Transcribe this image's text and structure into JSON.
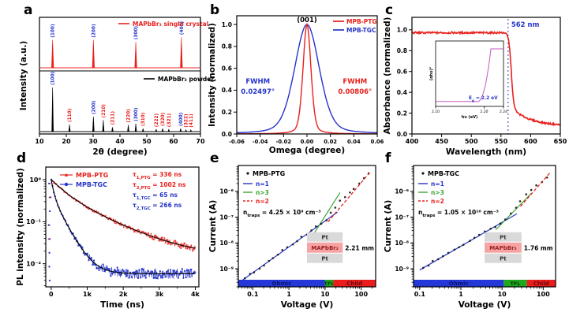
{
  "figure": {
    "background": "#ffffff"
  },
  "colors": {
    "red": "#e8211d",
    "blue": "#2735c9",
    "green": "#3fa535",
    "black": "#000000",
    "bar_blue": "#2438d8",
    "bar_green": "#1fa81f",
    "bar_red": "#ea1c1c",
    "gray": "#d9d9d9",
    "pink": "#f6a3a3",
    "magenta": "#c45ac4",
    "ohmic_text": "#0b1470",
    "tfl_text": "#0a3a0a",
    "child_text": "#6e0a0a",
    "device_text": "#9a2020"
  },
  "chart_data": {
    "a": {
      "panel_label": "a",
      "type": "line",
      "xlabel": "2θ (degree)",
      "ylabel": "Intensity (a.u.)",
      "xlim": [
        10,
        70
      ],
      "xticks": [
        10,
        20,
        30,
        40,
        50,
        60,
        70
      ],
      "series": [
        {
          "name": "MAPbBr₃ single crystal",
          "color": "red",
          "peaks": [
            [
              14.9,
              0.88,
              "(100)",
              "blue"
            ],
            [
              30.1,
              0.88,
              "(200)",
              "blue"
            ],
            [
              45.9,
              0.82,
              "(300)",
              "blue"
            ],
            [
              62.9,
              0.97,
              "(400)",
              "blue"
            ]
          ]
        },
        {
          "name": "MAPbBr₃ powder",
          "color": "black",
          "peaks": [
            [
              14.9,
              1.0,
              "(100)",
              "blue"
            ],
            [
              21.2,
              0.16,
              "(110)",
              "red"
            ],
            [
              30.1,
              0.34,
              "(200)",
              "blue"
            ],
            [
              33.8,
              0.26,
              "(210)",
              "red"
            ],
            [
              37.2,
              0.1,
              "(211)",
              "red"
            ],
            [
              43.1,
              0.15,
              "(220)",
              "red"
            ],
            [
              45.9,
              0.18,
              "(300)",
              "blue"
            ],
            [
              48.6,
              0.07,
              "(310)",
              "red"
            ],
            [
              53.5,
              0.05,
              "(222)",
              "red"
            ],
            [
              55.9,
              0.07,
              "(320)",
              "red"
            ],
            [
              58.2,
              0.05,
              "(321)",
              "red"
            ],
            [
              62.6,
              0.07,
              "(400)",
              "blue"
            ],
            [
              64.6,
              0.04,
              "(322)",
              "red"
            ],
            [
              66.4,
              0.04,
              "(411)",
              "red"
            ]
          ]
        }
      ]
    },
    "b": {
      "panel_label": "b",
      "type": "line",
      "xlabel": "Omega (degree)",
      "ylabel": "Intensity (normalized)",
      "xlim": [
        -0.06,
        0.06
      ],
      "ylim": [
        0,
        1.08
      ],
      "xticks": [
        [
          -0.06,
          "-0.06"
        ],
        [
          -0.04,
          "-0.04"
        ],
        [
          -0.02,
          "-0.02"
        ],
        [
          0,
          "0.00"
        ],
        [
          0.02,
          "0.02"
        ],
        [
          0.04,
          "0.04"
        ],
        [
          0.06,
          "0.06"
        ]
      ],
      "yticks": [
        [
          0,
          "0.0"
        ],
        [
          0.2,
          "0.2"
        ],
        [
          0.4,
          "0.4"
        ],
        [
          0.6,
          "0.6"
        ],
        [
          0.8,
          "0.8"
        ],
        [
          1.0,
          "1.0"
        ]
      ],
      "peak_label": "(001)",
      "legend": [
        {
          "label": "MPB-PTG",
          "color": "red"
        },
        {
          "label": "MPB-TGC",
          "color": "blue"
        }
      ],
      "series": [
        {
          "name": "MPB-TGC",
          "color": "blue",
          "fwhm_deg": 0.02497
        },
        {
          "name": "MPB-PTG",
          "color": "red",
          "fwhm_deg": 0.00806
        }
      ],
      "annotations": [
        {
          "line1": "FWHM",
          "line2": "0.02497°",
          "color": "blue",
          "x": -0.042
        },
        {
          "line1": "FWHM",
          "line2": "0.00806°",
          "color": "red",
          "x": 0.041
        }
      ]
    },
    "c": {
      "panel_label": "c",
      "type": "line",
      "xlabel": "Wavelength (nm)",
      "ylabel": "Absorbance (normalized)",
      "xlim": [
        400,
        650
      ],
      "ylim": [
        0,
        1.12
      ],
      "xticks": [
        400,
        450,
        500,
        550,
        600,
        650
      ],
      "yticks": [
        [
          0,
          "0.0"
        ],
        [
          0.2,
          "0.2"
        ],
        [
          0.4,
          "0.4"
        ],
        [
          0.6,
          "0.6"
        ],
        [
          0.8,
          "0.8"
        ],
        [
          1.0,
          "1.0"
        ]
      ],
      "series": [
        {
          "name": "absorbance",
          "color": "red",
          "plateau": 0.972,
          "edge_nm": 562,
          "tail": 0.075
        }
      ],
      "vline": {
        "x": 562,
        "label": "562 nm",
        "color": "blue"
      },
      "inset": {
        "xlabel": "hν (eV)",
        "ylabel": "(αhν)²",
        "xlim": [
          2.1,
          2.24
        ],
        "xticks": [
          [
            2.1,
            "2.10"
          ],
          [
            2.2,
            "2.20"
          ],
          [
            2.24,
            "2.24"
          ]
        ],
        "eg_rich": [
          [
            "E",
            0
          ],
          [
            "g",
            -1
          ],
          [
            " = 2.2 eV",
            0
          ]
        ],
        "color": "magenta",
        "onset_ev": 2.2
      }
    },
    "d": {
      "panel_label": "d",
      "type": "line",
      "xlabel": "Time (ns)",
      "ylabel": "PL intensity (normalized)",
      "xlim": [
        -150,
        4100
      ],
      "xticks": [
        [
          0,
          "0"
        ],
        [
          1000,
          "1k"
        ],
        [
          2000,
          "2k"
        ],
        [
          3000,
          "3k"
        ],
        [
          4000,
          "4k"
        ]
      ],
      "ylog_range": [
        0.3,
        -2.55
      ],
      "yticks": [
        [
          1,
          "10⁰"
        ],
        [
          0.1,
          "10⁻¹"
        ],
        [
          0.01,
          "10⁻²"
        ]
      ],
      "legend": [
        {
          "label": "MPB-PTG",
          "color": "red",
          "marker": "triangle"
        },
        {
          "label": "MPB-TGC",
          "color": "blue",
          "marker": "circle"
        }
      ],
      "series": [
        {
          "name": "MPB-PTG",
          "color": "red",
          "tau1_ns": 336,
          "tau2_ns": 1002,
          "a1": 0.5,
          "a2": 0.5,
          "floor": 0.014,
          "seed": 7
        },
        {
          "name": "MPB-TGC",
          "color": "blue",
          "tau1_ns": 65,
          "tau2_ns": 266,
          "a1": 0.58,
          "a2": 0.42,
          "floor": 0.0058,
          "seed": 31
        }
      ],
      "annotations": [
        {
          "rich": [
            [
              "τ",
              0
            ],
            [
              "1,PTG",
              -1
            ],
            [
              " = 336 ns",
              0
            ]
          ],
          "color": "red"
        },
        {
          "rich": [
            [
              "τ",
              0
            ],
            [
              "2,PTG",
              -1
            ],
            [
              " = 1002 ns",
              0
            ]
          ],
          "color": "red"
        },
        {
          "rich": [
            [
              "τ",
              0
            ],
            [
              "1,TGC",
              -1
            ],
            [
              " = 65 ns",
              0
            ]
          ],
          "color": "blue"
        },
        {
          "rich": [
            [
              "τ",
              0
            ],
            [
              "2,TGC",
              -1
            ],
            [
              " = 266 ns",
              0
            ]
          ],
          "color": "blue"
        }
      ]
    },
    "e": {
      "panel_label": "e",
      "type": "scatter",
      "sample_label": "MPB-PTG",
      "xlabel": "Voltage (V)",
      "ylabel": "Current (A)",
      "xlog_range": [
        -1.4,
        2.4
      ],
      "ylog_range": [
        -5.0,
        -9.7
      ],
      "xticks": [
        [
          0.1,
          "0.1"
        ],
        [
          1,
          "1"
        ],
        [
          10,
          "10"
        ],
        [
          100,
          "100"
        ]
      ],
      "yticks": [
        [
          1e-06,
          "10⁻⁶"
        ],
        [
          1e-07,
          "10⁻⁷"
        ],
        [
          1e-08,
          "10⁻⁸"
        ],
        [
          1e-09,
          "10⁻⁹"
        ]
      ],
      "data_knots": [
        [
          0.06,
          4.2e-10
        ],
        [
          9,
          6.3e-08
        ],
        [
          20,
          2.8e-07
        ],
        [
          160,
          4.5e-06
        ]
      ],
      "n_points": 27,
      "seed": 11,
      "fit_lines": [
        {
          "label": "n=1",
          "color": "blue",
          "x1": 0.05,
          "y1": 3.5e-10,
          "x2": 22,
          "y2": 1.55e-07,
          "dash": false
        },
        {
          "label": "n>3",
          "color": "green",
          "x1": 4.2,
          "y1": 1.6e-08,
          "x2": 26,
          "y2": 9e-07,
          "dash": false
        },
        {
          "label": "n=2",
          "color": "red",
          "x1": 12,
          "y1": 6.5e-08,
          "x2": 185,
          "y2": 6e-06,
          "dash": true
        }
      ],
      "ntraps_rich": [
        [
          "n",
          0
        ],
        [
          "traps",
          -1
        ],
        [
          " = 4.25 × 10⁹ cm⁻³",
          0
        ]
      ],
      "device": {
        "layers": [
          "Pt",
          "MAPbBr₃",
          "Pt"
        ],
        "thickness": "2.21 mm"
      },
      "regions": [
        {
          "label": "Ohmic",
          "color": "bar_blue",
          "text_color": "ohmic_text",
          "to_v": 10
        },
        {
          "label": "TFL",
          "color": "bar_green",
          "text_color": "tfl_text",
          "to_v": 17
        },
        {
          "label": "Child",
          "color": "bar_red",
          "text_color": "child_text",
          "to_v": null
        }
      ]
    },
    "f": {
      "panel_label": "f",
      "type": "scatter",
      "sample_label": "MPB-TGC",
      "xlabel": "Voltage (V)",
      "ylabel": "Current (A)",
      "xlog_range": [
        -1.15,
        2.3
      ],
      "ylog_range": [
        -5.0,
        -9.7
      ],
      "xticks": [
        [
          0.1,
          "0.1"
        ],
        [
          1,
          "1"
        ],
        [
          10,
          "10"
        ],
        [
          100,
          "100"
        ]
      ],
      "yticks": [
        [
          1e-06,
          "10⁻⁶"
        ],
        [
          1e-07,
          "10⁻⁷"
        ],
        [
          1e-08,
          "10⁻⁸"
        ],
        [
          1e-09,
          "10⁻⁹"
        ]
      ],
      "data_knots": [
        [
          0.12,
          1.05e-09
        ],
        [
          10,
          6.5e-08
        ],
        [
          40,
          7.9e-07
        ],
        [
          120,
          3.2e-06
        ]
      ],
      "n_points": 25,
      "seed": 23,
      "fit_lines": [
        {
          "label": "n=1",
          "color": "blue",
          "x1": 0.1,
          "y1": 9e-10,
          "x2": 23,
          "y2": 1.35e-07,
          "dash": false
        },
        {
          "label": "n>3",
          "color": "green",
          "x1": 7,
          "y1": 3.2e-08,
          "x2": 52,
          "y2": 8.5e-07,
          "dash": false
        },
        {
          "label": "n=2",
          "color": "red",
          "x1": 28,
          "y1": 2.6e-07,
          "x2": 150,
          "y2": 5.5e-06,
          "dash": true
        }
      ],
      "ntraps_rich": [
        [
          "n",
          0
        ],
        [
          "traps",
          -1
        ],
        [
          " = 1.05 × 10¹⁰ cm⁻³",
          0
        ]
      ],
      "device": {
        "layers": [
          "Pt",
          "MAPbBr₃",
          "Pt"
        ],
        "thickness": "1.76 mm"
      },
      "regions": [
        {
          "label": "Ohmic",
          "color": "bar_blue",
          "text_color": "ohmic_text",
          "to_v": 11
        },
        {
          "label": "TFL",
          "color": "bar_green",
          "text_color": "tfl_text",
          "to_v": 40
        },
        {
          "label": "Child",
          "color": "bar_red",
          "text_color": "child_text",
          "to_v": null
        }
      ]
    }
  }
}
